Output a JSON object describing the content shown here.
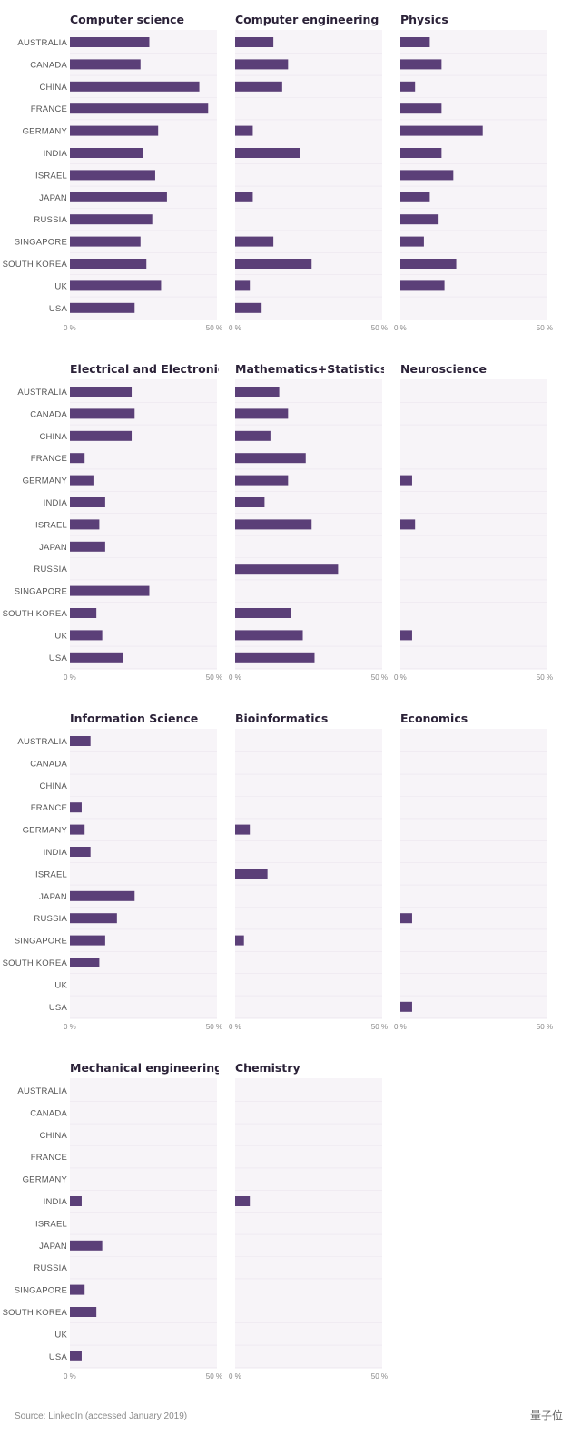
{
  "source": "Source: LinkedIn (accessed January 2019)",
  "watermark": "量子位",
  "colors": {
    "bar": "#5b3f78",
    "panel_bg": "#f7f4f8",
    "grid": "#ebe5ee"
  },
  "chart_data": {
    "type": "bar",
    "orientation": "horizontal",
    "layout": "small-multiples",
    "categories": [
      "AUSTRALIA",
      "CANADA",
      "CHINA",
      "FRANCE",
      "GERMANY",
      "INDIA",
      "ISRAEL",
      "JAPAN",
      "RUSSIA",
      "SINGAPORE",
      "SOUTH KOREA",
      "UK",
      "USA"
    ],
    "xlim": [
      0,
      50
    ],
    "tick_labels": [
      "0 %",
      "50 %"
    ],
    "series": [
      {
        "name": "Computer science",
        "values": [
          27,
          24,
          44,
          47,
          30,
          25,
          29,
          33,
          28,
          24,
          26,
          31,
          22
        ]
      },
      {
        "name": "Computer engineering",
        "values": [
          13,
          18,
          16,
          0,
          6,
          22,
          0,
          6,
          0,
          13,
          26,
          5,
          9
        ]
      },
      {
        "name": "Physics",
        "values": [
          10,
          14,
          5,
          14,
          28,
          14,
          18,
          10,
          13,
          8,
          19,
          15,
          0
        ]
      },
      {
        "name": "Electrical and Electronics Engi",
        "values": [
          21,
          22,
          21,
          5,
          8,
          12,
          10,
          12,
          0,
          27,
          9,
          11,
          18
        ]
      },
      {
        "name": "Mathematics+Statistics",
        "values": [
          15,
          18,
          12,
          24,
          18,
          10,
          26,
          0,
          35,
          0,
          19,
          23,
          27
        ]
      },
      {
        "name": "Neuroscience",
        "values": [
          0,
          0,
          0,
          0,
          4,
          0,
          5,
          0,
          0,
          0,
          0,
          4,
          0
        ]
      },
      {
        "name": "Information Science",
        "values": [
          7,
          0,
          0,
          4,
          5,
          7,
          0,
          22,
          16,
          12,
          10,
          0,
          0
        ]
      },
      {
        "name": "Bioinformatics",
        "values": [
          0,
          0,
          0,
          0,
          5,
          0,
          11,
          0,
          0,
          3,
          0,
          0,
          0
        ]
      },
      {
        "name": "Economics",
        "values": [
          0,
          0,
          0,
          0,
          0,
          0,
          0,
          0,
          4,
          0,
          0,
          0,
          4
        ]
      },
      {
        "name": "Mechanical engineering",
        "values": [
          0,
          0,
          0,
          0,
          0,
          4,
          0,
          11,
          0,
          5,
          9,
          0,
          4
        ]
      },
      {
        "name": "Chemistry",
        "values": [
          0,
          0,
          0,
          0,
          0,
          5,
          0,
          0,
          0,
          0,
          0,
          0,
          0
        ]
      }
    ]
  }
}
